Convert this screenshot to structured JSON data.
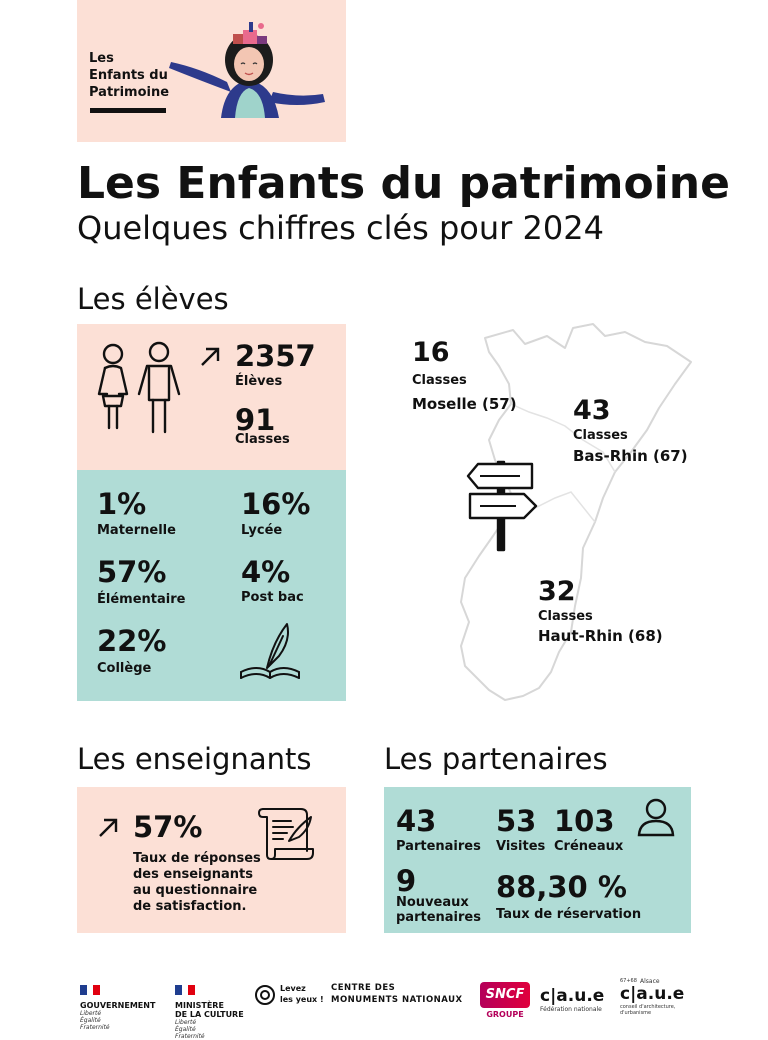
{
  "logo": {
    "lines": [
      "Les",
      "Enfants du",
      "Patrimoine"
    ]
  },
  "title": "Les Enfants du patrimoine",
  "subtitle": "Quelques chiffres clés pour 2024",
  "eleves": {
    "heading": "Les élèves",
    "students_value": "2357",
    "students_label": "Élèves",
    "classes_value": "91",
    "classes_label": "Classes",
    "levels": [
      {
        "value": "1%",
        "label": "Maternelle"
      },
      {
        "value": "16%",
        "label": "Lycée"
      },
      {
        "value": "57%",
        "label": "Élémentaire"
      },
      {
        "value": "4%",
        "label": "Post bac"
      },
      {
        "value": "22%",
        "label": "Collège"
      }
    ]
  },
  "map": {
    "moselle": {
      "value": "16",
      "classes": "Classes",
      "dept": "Moselle (57)"
    },
    "bas_rhin": {
      "value": "43",
      "classes": "Classes",
      "dept": "Bas-Rhin (67)"
    },
    "haut_rhin": {
      "value": "32",
      "classes": "Classes",
      "dept": "Haut-Rhin (68)"
    }
  },
  "enseignants": {
    "heading": "Les enseignants",
    "value": "57%",
    "desc_lines": [
      "Taux de réponses",
      "des enseignants",
      "au questionnaire",
      "de satisfaction."
    ]
  },
  "partenaires": {
    "heading": "Les partenaires",
    "partners_value": "43",
    "partners_label": "Partenaires",
    "visits_value": "53",
    "visits_label": "Visites",
    "slots_value": "103",
    "slots_label": "Créneaux",
    "new_value": "9",
    "new_label_lines": [
      "Nouveaux",
      "partenaires"
    ],
    "rate_value": "88,30 %",
    "rate_label": "Taux de réservation"
  },
  "footer": {
    "gouv": {
      "name": "GOUVERNEMENT",
      "motto": [
        "Liberté",
        "Égalité",
        "Fraternité"
      ]
    },
    "culture": {
      "name": [
        "MINISTÈRE",
        "DE LA CULTURE"
      ],
      "motto": [
        "Liberté",
        "Égalité",
        "Fraternité"
      ]
    },
    "levez": [
      "Levez",
      "les yeux !"
    ],
    "cmn": [
      "CENTRE DES",
      "MONUMENTS NATIONAUX"
    ],
    "sncf": {
      "name": "SNCF",
      "sub": "GROUPE"
    },
    "caue_fed": {
      "name": "c|a.u.e",
      "sub": "Fédération nationale"
    },
    "caue_alsace": {
      "name": "c|a.u.e",
      "top": "Alsace",
      "prefix": "67+68",
      "sub": [
        "conseil d'architecture,",
        "d'urbanisme",
        "et de l'environnement"
      ]
    }
  }
}
